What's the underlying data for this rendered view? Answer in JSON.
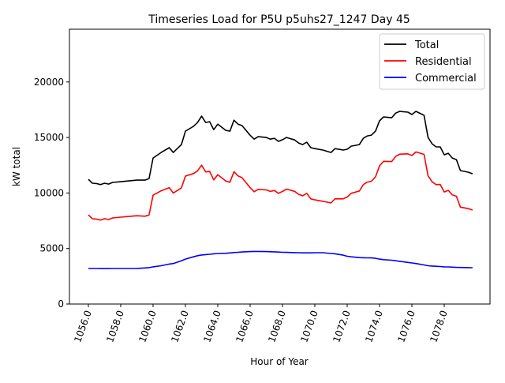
{
  "chart_data": {
    "type": "line",
    "title": "Timeseries Load for P5U p5uhs27_1247  Day 45",
    "xlabel": "Hour of Year",
    "ylabel": "kW total",
    "xlim": [
      1054.83,
      1080.83
    ],
    "ylim": [
      0,
      24750
    ],
    "xticks": [
      1056,
      1058,
      1060,
      1062,
      1064,
      1066,
      1068,
      1070,
      1072,
      1074,
      1076,
      1078
    ],
    "xtick_labels": [
      "1056.0",
      "1058.0",
      "1060.0",
      "1062.0",
      "1064.0",
      "1066.0",
      "1068.0",
      "1070.0",
      "1072.0",
      "1074.0",
      "1076.0",
      "1078.0"
    ],
    "yticks": [
      0,
      5000,
      10000,
      15000,
      20000
    ],
    "ytick_labels": [
      "0",
      "5000",
      "10000",
      "15000",
      "20000"
    ],
    "grid": false,
    "legend_position": "top-right",
    "x": [
      1056,
      1056.25,
      1056.5,
      1056.75,
      1057,
      1057.25,
      1057.5,
      1058,
      1058.5,
      1059,
      1059.5,
      1059.75,
      1060,
      1060.5,
      1061,
      1061.25,
      1061.75,
      1062,
      1062.5,
      1062.75,
      1063,
      1063.25,
      1063.5,
      1063.75,
      1064,
      1064.5,
      1064.75,
      1065,
      1065.25,
      1065.5,
      1066,
      1066.25,
      1066.5,
      1067,
      1067.25,
      1067.5,
      1067.75,
      1068,
      1068.25,
      1068.75,
      1069,
      1069.25,
      1069.5,
      1069.75,
      1070,
      1070.5,
      1071,
      1071.25,
      1071.75,
      1072,
      1072.25,
      1072.75,
      1073,
      1073.25,
      1073.5,
      1073.75,
      1074,
      1074.25,
      1074.75,
      1075,
      1075.25,
      1075.75,
      1076,
      1076.25,
      1076.75,
      1077,
      1077.25,
      1077.5,
      1077.75,
      1078,
      1078.25,
      1078.5,
      1078.75,
      1079,
      1079.5,
      1079.75
    ],
    "series": [
      {
        "name": "Total",
        "color": "#000000",
        "values": [
          11230,
          10880,
          10850,
          10750,
          10880,
          10800,
          10950,
          11020,
          11090,
          11160,
          11160,
          11300,
          13150,
          13650,
          14080,
          13650,
          14360,
          15570,
          16000,
          16350,
          16920,
          16350,
          16420,
          15700,
          16200,
          15640,
          15570,
          16560,
          16200,
          16070,
          15200,
          14850,
          15070,
          15000,
          14850,
          14930,
          14650,
          14800,
          15000,
          14780,
          14500,
          14360,
          14580,
          14080,
          14000,
          13870,
          13650,
          14000,
          13870,
          13940,
          14220,
          14360,
          14930,
          15140,
          15210,
          15570,
          16500,
          16850,
          16780,
          17200,
          17350,
          17280,
          17070,
          17350,
          17000,
          15000,
          14430,
          14150,
          14150,
          13440,
          13580,
          13150,
          13010,
          12020,
          11870,
          11730
        ]
      },
      {
        "name": "Residential",
        "color": "#ff0000",
        "values": [
          8030,
          7680,
          7650,
          7560,
          7690,
          7610,
          7750,
          7820,
          7890,
          7950,
          7910,
          8020,
          9800,
          10200,
          10480,
          10000,
          10460,
          11520,
          11750,
          12000,
          12500,
          11900,
          11940,
          11180,
          11650,
          11070,
          10970,
          11920,
          11540,
          11380,
          10480,
          10110,
          10330,
          10280,
          10140,
          10230,
          9970,
          10140,
          10350,
          10150,
          9880,
          9750,
          9970,
          9470,
          9380,
          9250,
          9100,
          9480,
          9470,
          9640,
          9970,
          10180,
          10760,
          10980,
          11060,
          11450,
          12450,
          12850,
          12830,
          13300,
          13500,
          13530,
          13370,
          13700,
          13480,
          11550,
          11010,
          10750,
          10770,
          10090,
          10240,
          9830,
          9710,
          8730,
          8590,
          8460
        ]
      },
      {
        "name": "Commercial",
        "color": "#0000ff",
        "values": [
          3200,
          3200,
          3200,
          3190,
          3190,
          3190,
          3200,
          3200,
          3200,
          3210,
          3250,
          3280,
          3350,
          3450,
          3600,
          3650,
          3900,
          4050,
          4250,
          4350,
          4420,
          4450,
          4480,
          4520,
          4550,
          4570,
          4600,
          4640,
          4660,
          4690,
          4720,
          4740,
          4740,
          4720,
          4710,
          4700,
          4680,
          4660,
          4650,
          4630,
          4620,
          4610,
          4610,
          4610,
          4620,
          4620,
          4550,
          4520,
          4400,
          4300,
          4250,
          4180,
          4170,
          4160,
          4150,
          4120,
          4050,
          4000,
          3950,
          3900,
          3850,
          3750,
          3700,
          3650,
          3520,
          3450,
          3420,
          3400,
          3380,
          3350,
          3340,
          3320,
          3300,
          3290,
          3280,
          3270
        ]
      }
    ]
  }
}
